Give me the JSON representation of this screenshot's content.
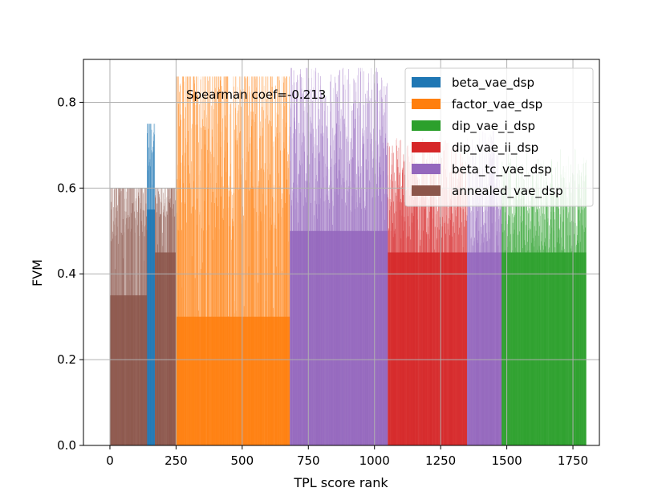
{
  "chart_data": {
    "type": "bar",
    "title": "",
    "xlabel": "TPL score rank",
    "ylabel": "FVM",
    "xlim": [
      -100,
      1850
    ],
    "ylim": [
      0,
      0.9
    ],
    "x_ticks": [
      0,
      250,
      500,
      750,
      1000,
      1250,
      1500,
      1750
    ],
    "x_tick_labels": [
      "0",
      "250",
      "500",
      "750",
      "1000",
      "1250",
      "1500",
      "1750"
    ],
    "y_ticks": [
      0.0,
      0.2,
      0.4,
      0.6,
      0.8
    ],
    "y_tick_labels": [
      "0.0",
      "0.2",
      "0.4",
      "0.6",
      "0.8"
    ],
    "grid": true,
    "legend_position": "top-right",
    "annotation": "Spearman coef=-0.213",
    "series": [
      {
        "name": "beta_vae_dsp",
        "color": "#1f77b4",
        "segments": [
          {
            "x_range": [
              140,
              170
            ],
            "value_range": [
              0.55,
              0.75
            ],
            "typical": 0.7
          }
        ]
      },
      {
        "name": "factor_vae_dsp",
        "color": "#ff7f0e",
        "segments": [
          {
            "x_range": [
              250,
              680
            ],
            "value_range": [
              0.3,
              0.86
            ],
            "typical": 0.75
          }
        ]
      },
      {
        "name": "dip_vae_i_dsp",
        "color": "#2ca02c",
        "segments": [
          {
            "x_range": [
              1480,
              1800
            ],
            "value_range": [
              0.45,
              0.7
            ],
            "typical": 0.55
          }
        ]
      },
      {
        "name": "dip_vae_ii_dsp",
        "color": "#d62728",
        "segments": [
          {
            "x_range": [
              1050,
              1350
            ],
            "value_range": [
              0.45,
              0.72
            ],
            "typical": 0.6
          }
        ]
      },
      {
        "name": "beta_tc_vae_dsp",
        "color": "#9467bd",
        "segments": [
          {
            "x_range": [
              680,
              1050
            ],
            "value_range": [
              0.5,
              0.88
            ],
            "typical": 0.72
          },
          {
            "x_range": [
              1350,
              1480
            ],
            "value_range": [
              0.45,
              0.75
            ],
            "typical": 0.6
          }
        ]
      },
      {
        "name": "annealed_vae_dsp",
        "color": "#8c564b",
        "segments": [
          {
            "x_range": [
              0,
              140
            ],
            "value_range": [
              0.35,
              0.6
            ],
            "typical": 0.6
          },
          {
            "x_range": [
              170,
              250
            ],
            "value_range": [
              0.45,
              0.6
            ],
            "typical": 0.6
          }
        ]
      }
    ]
  }
}
